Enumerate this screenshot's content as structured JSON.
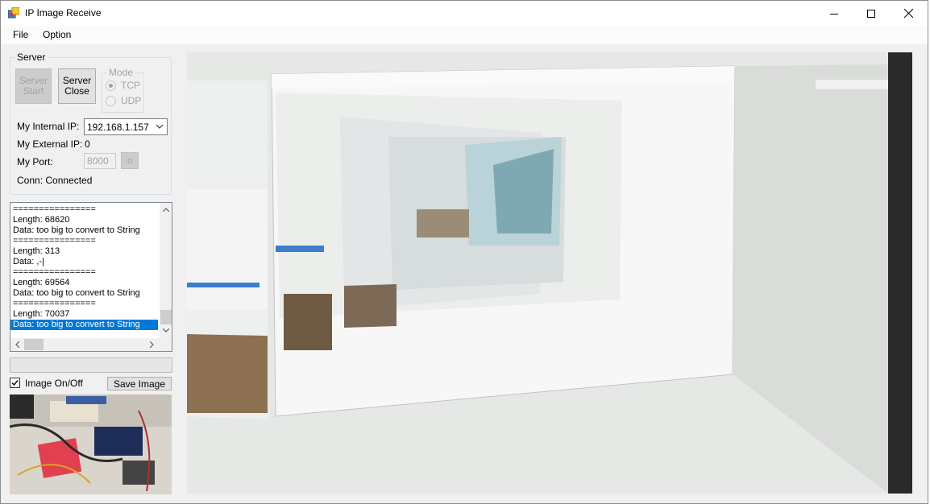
{
  "window": {
    "title": "IP Image Receive",
    "controls": {
      "minimize": "minimize",
      "maximize": "maximize",
      "close": "close"
    }
  },
  "menu": {
    "items": [
      "File",
      "Option"
    ]
  },
  "server": {
    "group_label": "Server",
    "start_label": "Server\nStart",
    "close_label": "Server\nClose",
    "mode": {
      "label": "Mode",
      "options": [
        "TCP",
        "UDP"
      ],
      "selected": "TCP",
      "enabled": false
    },
    "internal_ip_label": "My Internal IP:",
    "internal_ip_value": "192.168.1.157",
    "external_ip_label": "My External IP:",
    "external_ip_value": "0",
    "port_label": "My Port:",
    "port_value": "8000",
    "port_button": "o",
    "conn_status": "Conn: Connected"
  },
  "log": {
    "lines": [
      "================",
      "Length: 68620",
      "Data: too big to convert to String",
      "================",
      "Length: 313",
      "Data: ,-|",
      "================",
      "Length: 69564",
      "Data: too big to convert to String",
      "================",
      "Length: 70037",
      "Data: too big to convert to String"
    ],
    "selected_index": 11
  },
  "progress": {
    "value": 0
  },
  "image_toggle": {
    "label": "Image On/Off",
    "checked": true
  },
  "save_image_label": "Save Image",
  "colors": {
    "selection": "#0078d7",
    "window_bg": "#f0f0f0",
    "disabled_text": "#a3a3a3"
  },
  "icons": {
    "app": "app-window-icon",
    "dropdown": "chevron-down-icon",
    "scroll_up": "scroll-up-icon",
    "scroll_down": "scroll-down-icon",
    "scroll_left": "scroll-left-icon",
    "scroll_right": "scroll-right-icon"
  }
}
